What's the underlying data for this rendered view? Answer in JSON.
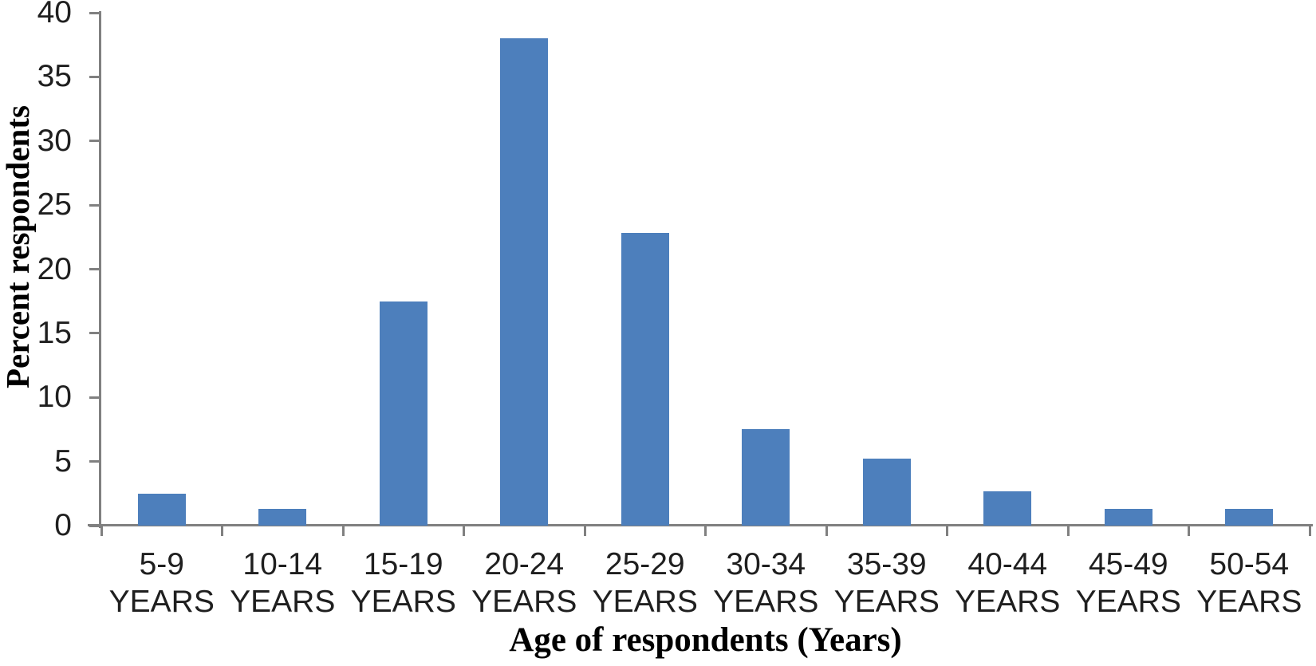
{
  "chart_data": {
    "type": "bar",
    "title": "",
    "xlabel": "Age of respondents (Years)",
    "ylabel": "Percent respondents",
    "categories": [
      "5-9 YEARS",
      "10-14 YEARS",
      "15-19 YEARS",
      "20-24 YEARS",
      "25-29 YEARS",
      "30-34 YEARS",
      "35-39 YEARS",
      "40-44 YEARS",
      "45-49 YEARS",
      "50-54 YEARS"
    ],
    "values": [
      2.5,
      1.3,
      17.5,
      38,
      22.8,
      7.5,
      5.2,
      2.7,
      1.3,
      1.3
    ],
    "ylim": [
      0,
      40
    ],
    "yticks": [
      0,
      5,
      10,
      15,
      20,
      25,
      30,
      35,
      40
    ],
    "ytick_step": 5,
    "grid": false,
    "legend": null,
    "bar_color": "#4d7fbc",
    "axis_color": "#808080",
    "text_color": "#1f1f1f"
  }
}
